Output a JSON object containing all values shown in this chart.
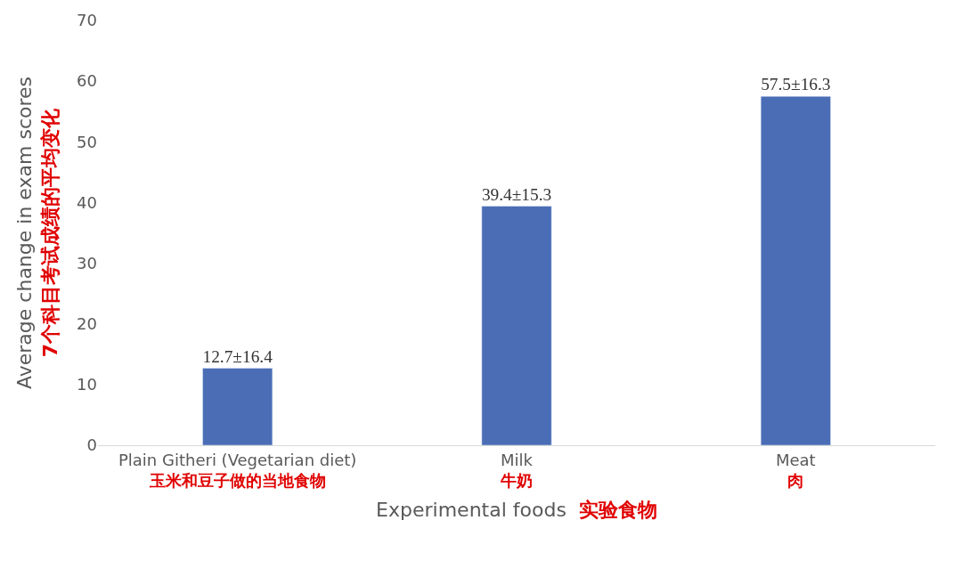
{
  "chart_data": {
    "type": "bar",
    "categories": [
      "Plain Githeri (Vegetarian diet)\n玉米和豆子做的当地食物",
      "Milk\n牛奶",
      "Meat\n肉"
    ],
    "values": [
      12.7,
      39.4,
      57.5
    ],
    "value_labels": [
      "12.7±16.4",
      "39.4±15.3",
      "57.5±16.3"
    ],
    "color": "#4a6db6",
    "xlabel": "Experimental foods\n实验食物",
    "ylabel": "Average change in exam scores\n7个科目考试成绩的平均变化",
    "ylim": [
      0,
      70
    ],
    "yticks": [
      0,
      10,
      20,
      30,
      40,
      50,
      60,
      70
    ],
    "grid": false
  }
}
